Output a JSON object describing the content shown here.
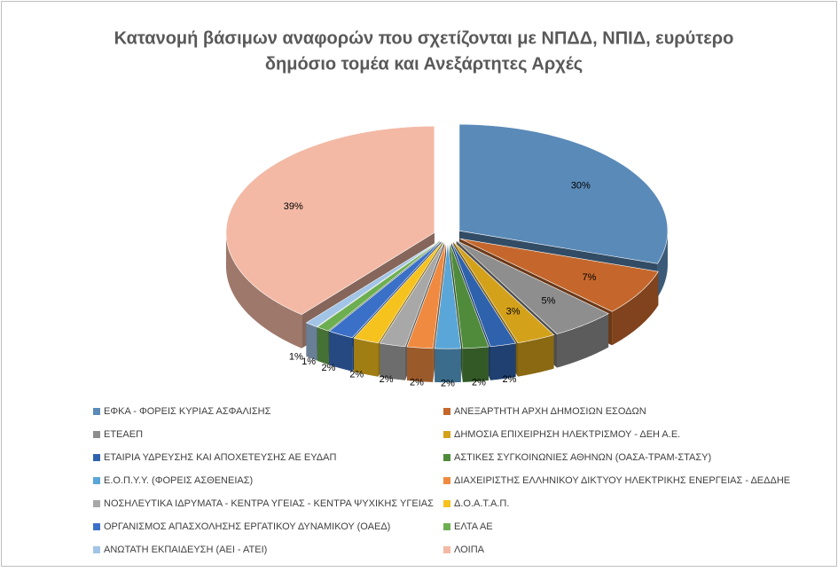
{
  "chart_data": {
    "type": "pie3d",
    "title": [
      "Κατανομή βάσιμων αναφορών που σχετίζονται με ΝΠΔΔ, ΝΠΙΔ, ευρύτερο",
      "δημόσιο τομέα και Ανεξάρτητες Αρχές"
    ],
    "categories": [
      "ΕΦΚΑ - ΦΟΡΕΙΣ ΚΥΡΙΑΣ ΑΣΦΑΛΙΣΗΣ",
      "ΑΝΕΞΑΡΤΗΤΗ ΑΡΧΗ ΔΗΜΟΣΙΩΝ ΕΣΟΔΩΝ",
      "ΕΤΕΑΕΠ",
      "ΔΗΜΟΣΙΑ ΕΠΙΧΕΙΡΗΣΗ ΗΛΕΚΤΡΙΣΜΟΥ - ΔΕΗ Α.Ε.",
      "ΕΤΑΙΡΙΑ ΥΔΡΕΥΣΗΣ ΚΑΙ ΑΠΟΧΕΤΕΥΣΗΣ ΑΕ ΕΥΔΑΠ",
      "ΑΣΤΙΚΕΣ ΣΥΓΚΟΙΝΩΝΙΕΣ ΑΘΗΝΩΝ (ΟΑΣΑ-ΤΡΑΜ-ΣΤΑΣΥ)",
      "Ε.Ο.Π.Υ.Υ.  (ΦΟΡΕΙΣ ΑΣΘΕΝΕΙΑΣ)",
      "ΔΙΑΧΕΙΡΙΣΤΗΣ ΕΛΛΗΝΙΚΟΥ ΔΙΚΤΥΟΥ  ΗΛΕΚΤΡΙΚΗΣ ΕΝΕΡΓΕΙΑΣ - ΔΕΔΔΗΕ",
      "ΝΟΣΗΛΕΥΤΙΚΑ ΙΔΡΥΜΑΤΑ - ΚΕΝΤΡΑ ΥΓΕΙΑΣ - ΚΕΝΤΡΑ ΨΥΧΙΚΗΣ ΥΓΕΙΑΣ",
      "Δ.Ο.Α.Τ.Α.Π.",
      "ΟΡΓΑΝΙΣΜΟΣ ΑΠΑΣΧΟΛΗΣΗΣ ΕΡΓΑΤΙΚΟΥ ΔΥΝΑΜΙΚΟΥ (ΟΑΕΔ)",
      "ΕΛΤΑ ΑΕ",
      "ΑΝΩΤΑΤΗ ΕΚΠΑΙΔΕΥΣΗ (ΑΕΙ - ΑΤΕΙ)",
      "ΛΟΙΠΑ"
    ],
    "values": [
      30,
      7,
      5,
      3,
      2,
      2,
      2,
      2,
      2,
      2,
      2,
      1,
      1,
      39
    ],
    "value_labels": [
      "30%",
      "7%",
      "5%",
      "3%",
      "2%",
      "2%",
      "2%",
      "2%",
      "2%",
      "2%",
      "2%",
      "1%",
      "1%",
      "39%"
    ],
    "colors": [
      "#5a8ab8",
      "#c5672c",
      "#8e8e8e",
      "#d4a11b",
      "#2f62ad",
      "#4f8b3b",
      "#5aa6d8",
      "#ef8a40",
      "#a8a8a8",
      "#f6c21e",
      "#3b70c8",
      "#6cae50",
      "#a2c4e6",
      "#f3b9a5"
    ]
  }
}
